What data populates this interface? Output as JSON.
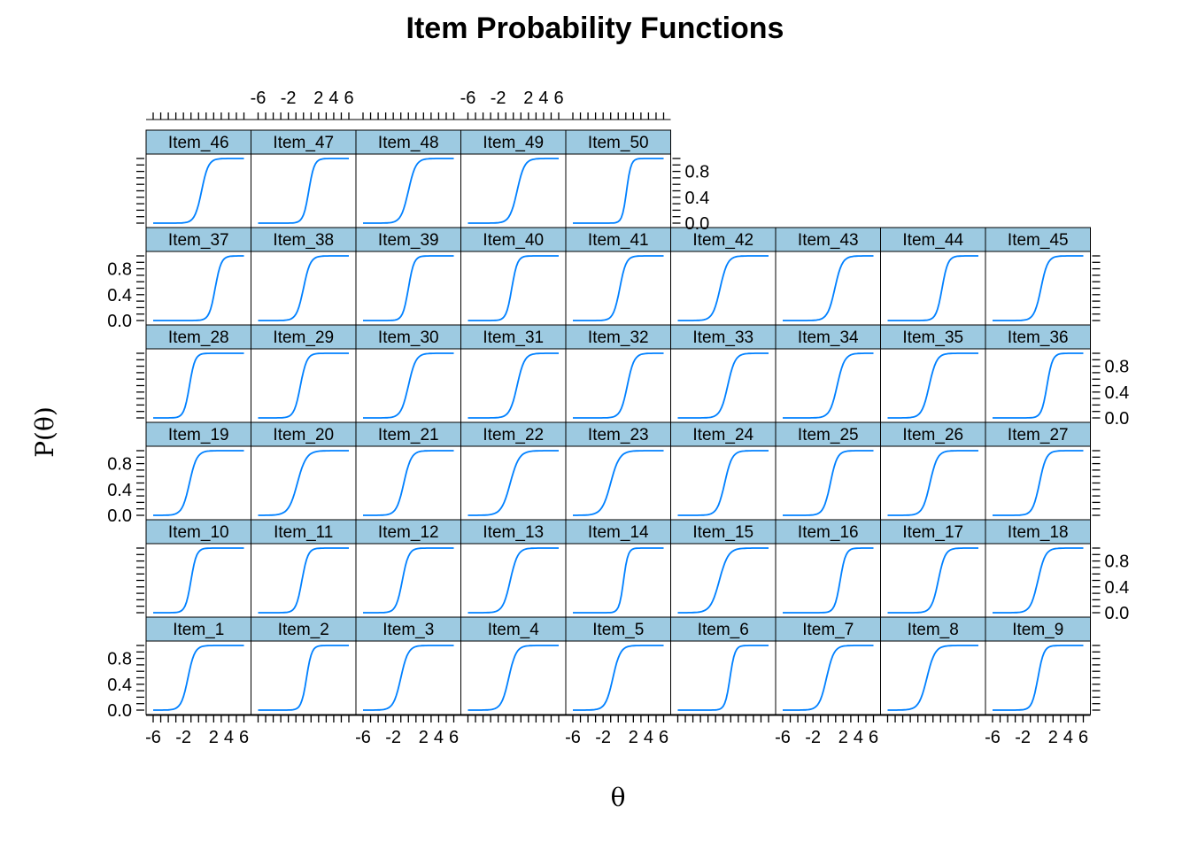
{
  "chart_data": {
    "type": "line",
    "title": "Item Probability Functions",
    "xlabel": "θ",
    "ylabel": "P(θ)",
    "xlim": [
      -6,
      6
    ],
    "ylim": [
      0,
      1
    ],
    "x_tick_labels": [
      "-6",
      "-2",
      "2",
      "4",
      "6"
    ],
    "y_tick_labels": [
      "0.0",
      "0.4",
      "0.8"
    ],
    "x_tick_values": [
      -6,
      -2,
      2,
      4,
      6
    ],
    "y_tick_values": [
      0,
      0.4,
      0.8
    ],
    "strip_color": "#9dcae1",
    "line_color": "#0080ff",
    "panels": [
      {
        "name": "Item_1",
        "a": 1.3,
        "b": -1.4
      },
      {
        "name": "Item_2",
        "a": 1.7,
        "b": 0.4
      },
      {
        "name": "Item_3",
        "a": 1.2,
        "b": -1.0
      },
      {
        "name": "Item_4",
        "a": 1.2,
        "b": -0.6
      },
      {
        "name": "Item_5",
        "a": 1.2,
        "b": -0.7
      },
      {
        "name": "Item_6",
        "a": 1.8,
        "b": 0.9
      },
      {
        "name": "Item_7",
        "a": 1.2,
        "b": -0.2
      },
      {
        "name": "Item_8",
        "a": 1.1,
        "b": -0.8
      },
      {
        "name": "Item_9",
        "a": 1.5,
        "b": 0.0
      },
      {
        "name": "Item_10",
        "a": 1.6,
        "b": -1.0
      },
      {
        "name": "Item_11",
        "a": 1.5,
        "b": -0.2
      },
      {
        "name": "Item_12",
        "a": 1.4,
        "b": -0.8
      },
      {
        "name": "Item_13",
        "a": 1.2,
        "b": -0.4
      },
      {
        "name": "Item_14",
        "a": 2.0,
        "b": 0.7
      },
      {
        "name": "Item_15",
        "a": 1.0,
        "b": -0.5
      },
      {
        "name": "Item_16",
        "a": 1.6,
        "b": 1.6
      },
      {
        "name": "Item_17",
        "a": 1.3,
        "b": 0.7
      },
      {
        "name": "Item_18",
        "a": 1.2,
        "b": 0.0
      },
      {
        "name": "Item_19",
        "a": 1.2,
        "b": -1.2
      },
      {
        "name": "Item_20",
        "a": 1.0,
        "b": -0.8
      },
      {
        "name": "Item_21",
        "a": 1.2,
        "b": -0.6
      },
      {
        "name": "Item_22",
        "a": 1.0,
        "b": -0.4
      },
      {
        "name": "Item_23",
        "a": 1.0,
        "b": -1.0
      },
      {
        "name": "Item_24",
        "a": 1.2,
        "b": 0.2
      },
      {
        "name": "Item_25",
        "a": 1.3,
        "b": 0.3
      },
      {
        "name": "Item_26",
        "a": 1.2,
        "b": -0.4
      },
      {
        "name": "Item_27",
        "a": 1.3,
        "b": 0.2
      },
      {
        "name": "Item_28",
        "a": 1.6,
        "b": -1.2
      },
      {
        "name": "Item_29",
        "a": 1.4,
        "b": -0.4
      },
      {
        "name": "Item_30",
        "a": 1.2,
        "b": 0.0
      },
      {
        "name": "Item_31",
        "a": 1.2,
        "b": 0.5
      },
      {
        "name": "Item_32",
        "a": 1.3,
        "b": 1.2
      },
      {
        "name": "Item_33",
        "a": 1.2,
        "b": 0.6
      },
      {
        "name": "Item_34",
        "a": 1.2,
        "b": 1.2
      },
      {
        "name": "Item_35",
        "a": 1.2,
        "b": -0.5
      },
      {
        "name": "Item_36",
        "a": 1.6,
        "b": 1.2
      },
      {
        "name": "Item_37",
        "a": 1.5,
        "b": 2.2
      },
      {
        "name": "Item_38",
        "a": 1.3,
        "b": 0.0
      },
      {
        "name": "Item_39",
        "a": 1.6,
        "b": 0.0
      },
      {
        "name": "Item_40",
        "a": 1.6,
        "b": -0.2
      },
      {
        "name": "Item_41",
        "a": 1.4,
        "b": 0.2
      },
      {
        "name": "Item_42",
        "a": 1.2,
        "b": -0.4
      },
      {
        "name": "Item_43",
        "a": 1.2,
        "b": 0.9
      },
      {
        "name": "Item_44",
        "a": 1.5,
        "b": 1.2
      },
      {
        "name": "Item_45",
        "a": 1.3,
        "b": 0.4
      },
      {
        "name": "Item_46",
        "a": 1.3,
        "b": 0.4
      },
      {
        "name": "Item_47",
        "a": 1.6,
        "b": 0.7
      },
      {
        "name": "Item_48",
        "a": 1.2,
        "b": 0.0
      },
      {
        "name": "Item_49",
        "a": 1.2,
        "b": 0.5
      },
      {
        "name": "Item_50",
        "a": 2.0,
        "b": 1.1
      }
    ]
  }
}
